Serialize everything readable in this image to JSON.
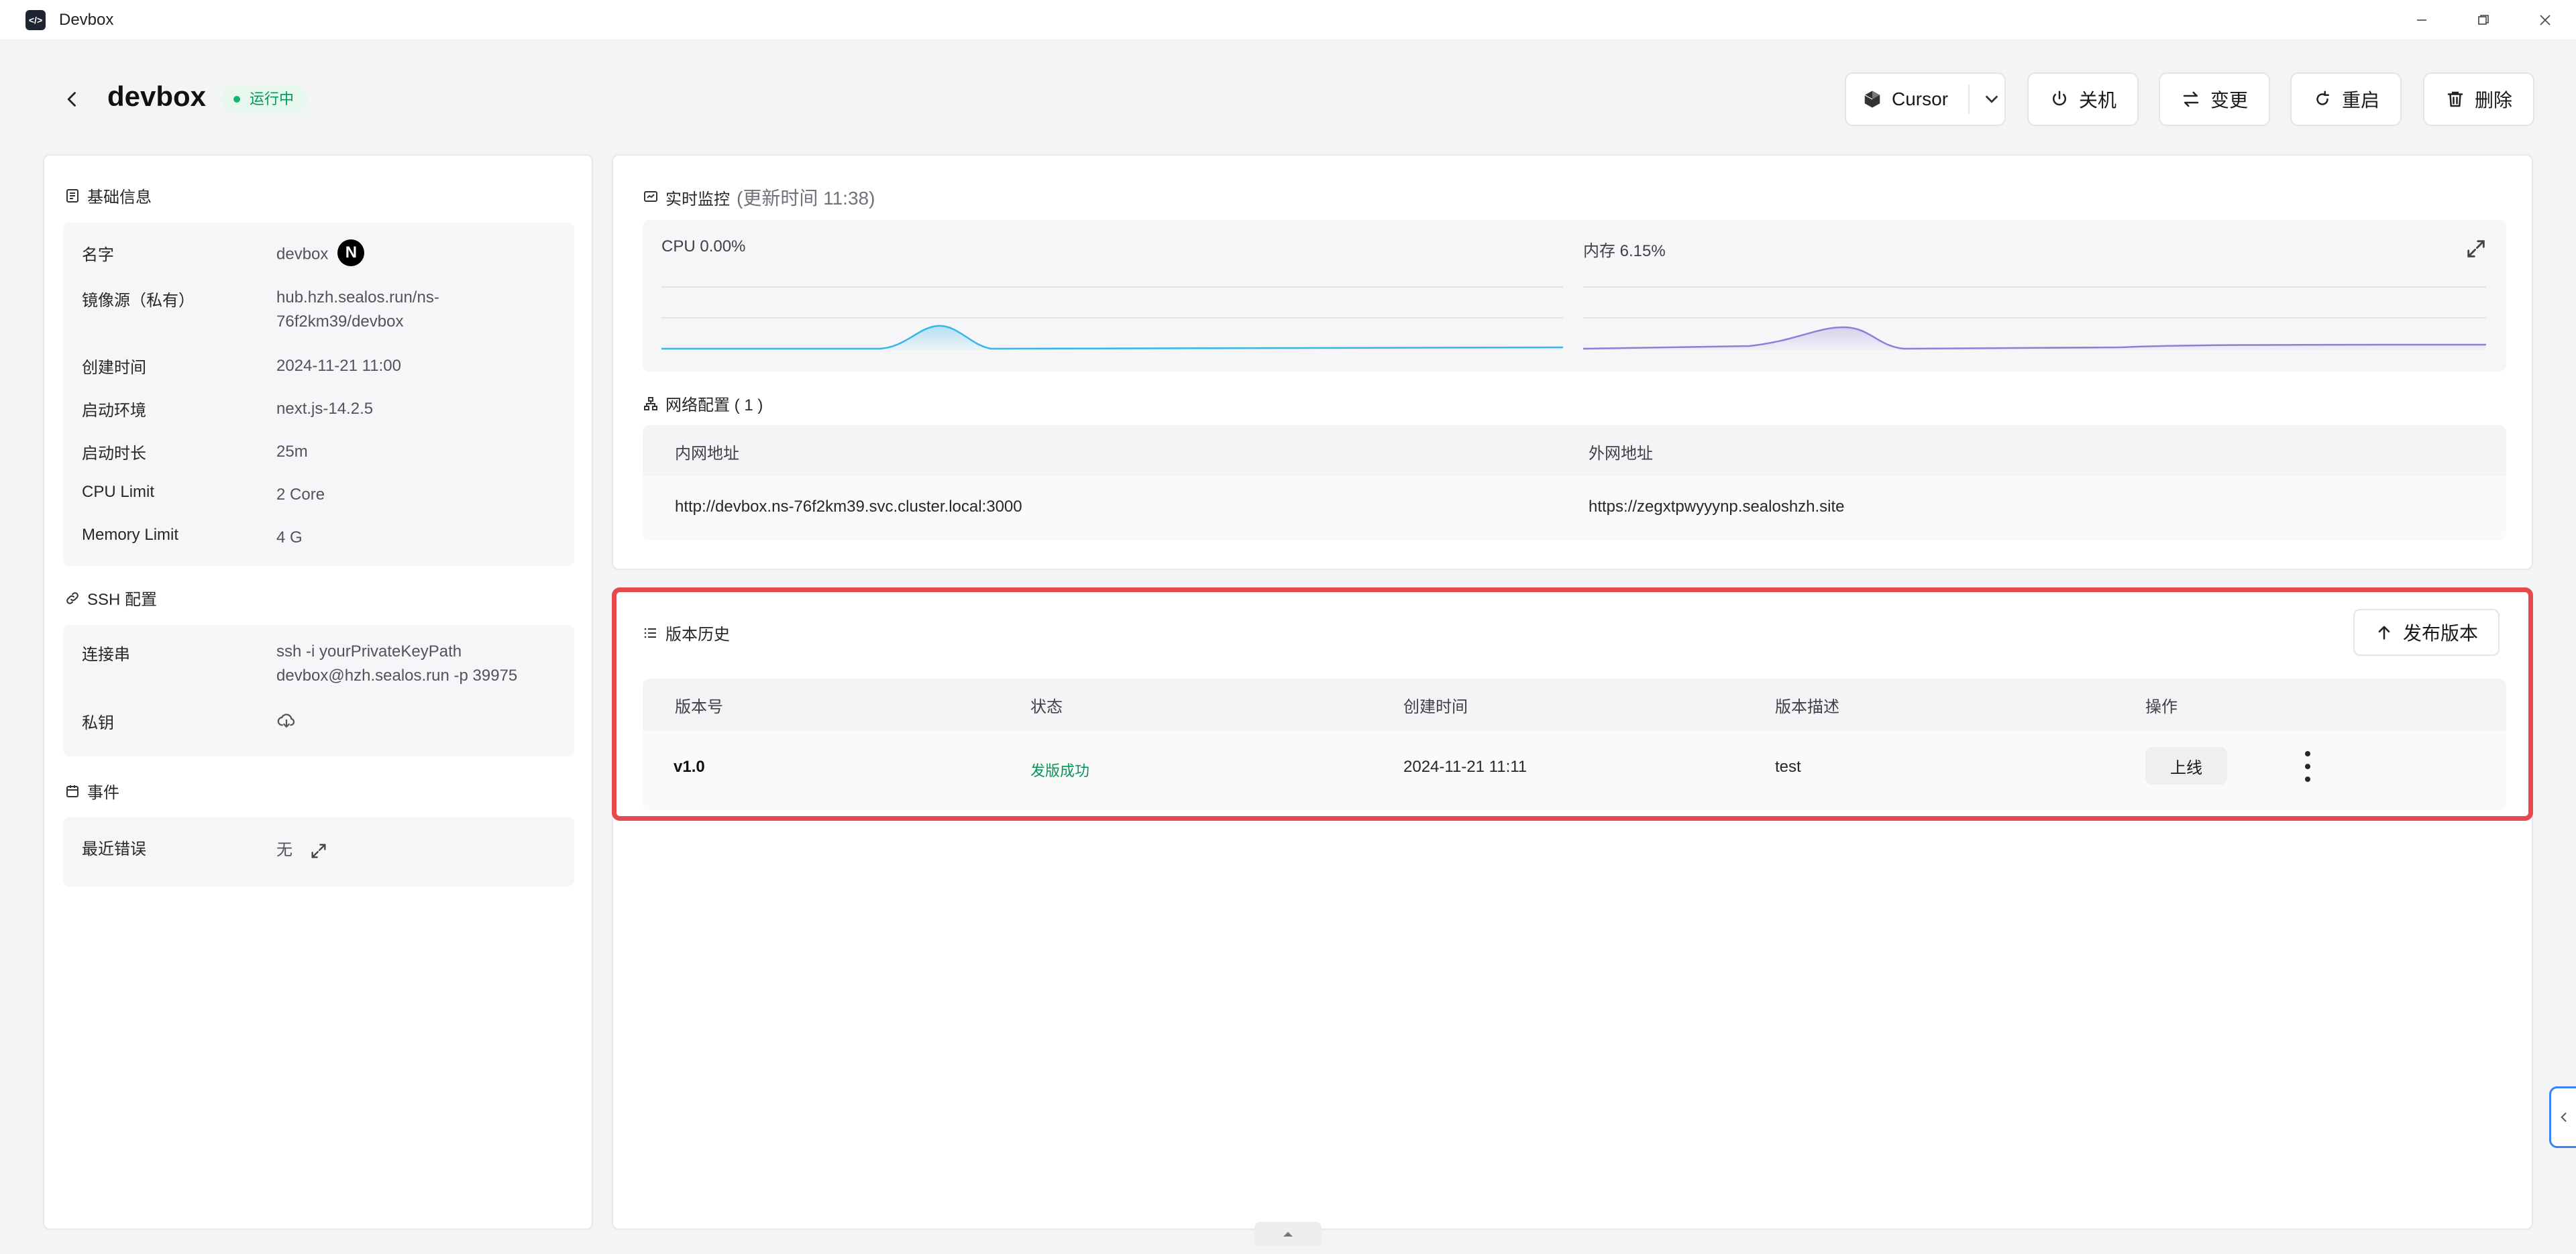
{
  "window": {
    "title": "Devbox"
  },
  "header": {
    "title": "devbox",
    "status": "运行中",
    "ide_label": "Cursor",
    "buttons": {
      "shutdown": "关机",
      "change": "变更",
      "restart": "重启",
      "delete": "删除"
    }
  },
  "basic_info": {
    "title": "基础信息",
    "rows": [
      {
        "label": "名字",
        "value": "devbox"
      },
      {
        "label": "镜像源（私有）",
        "value_line1": "hub.hzh.sealos.run/ns-",
        "value_line2": "76f2km39/devbox"
      },
      {
        "label": "创建时间",
        "value": "2024-11-21 11:00"
      },
      {
        "label": "启动环境",
        "value": "next.js-14.2.5"
      },
      {
        "label": "启动时长",
        "value": "25m"
      },
      {
        "label": "CPU Limit",
        "value": "2 Core"
      },
      {
        "label": "Memory Limit",
        "value": "4 G"
      }
    ]
  },
  "ssh": {
    "title": "SSH 配置",
    "conn_label": "连接串",
    "conn_line1": "ssh -i yourPrivateKeyPath",
    "conn_line2": "devbox@hzh.sealos.run -p 39975",
    "key_label": "私钥"
  },
  "events": {
    "title": "事件",
    "label": "最近错误",
    "value": "无"
  },
  "monitor": {
    "title": "实时监控",
    "updated": "(更新时间  11:38)",
    "cpu_label": "CPU 0.00%",
    "mem_label": "内存 6.15%",
    "colors": {
      "cpu": "#36b6e8",
      "mem": "#8b7fd8"
    }
  },
  "network": {
    "title": "网络配置 ( 1 )",
    "headers": [
      "内网地址",
      "外网地址"
    ],
    "row": [
      "http://devbox.ns-76f2km39.svc.cluster.local:3000",
      "https://zegxtpwyyynp.sealoshzh.site"
    ]
  },
  "versions": {
    "title": "版本历史",
    "publish_label": "发布版本",
    "headers": [
      "版本号",
      "状态",
      "创建时间",
      "版本描述",
      "操作"
    ],
    "row": {
      "version": "v1.0",
      "status": "发版成功",
      "created": "2024-11-21 11:11",
      "desc": "test",
      "action": "上线"
    }
  },
  "accent_colors": {
    "success": "#039855",
    "highlight": "#e5484d"
  }
}
